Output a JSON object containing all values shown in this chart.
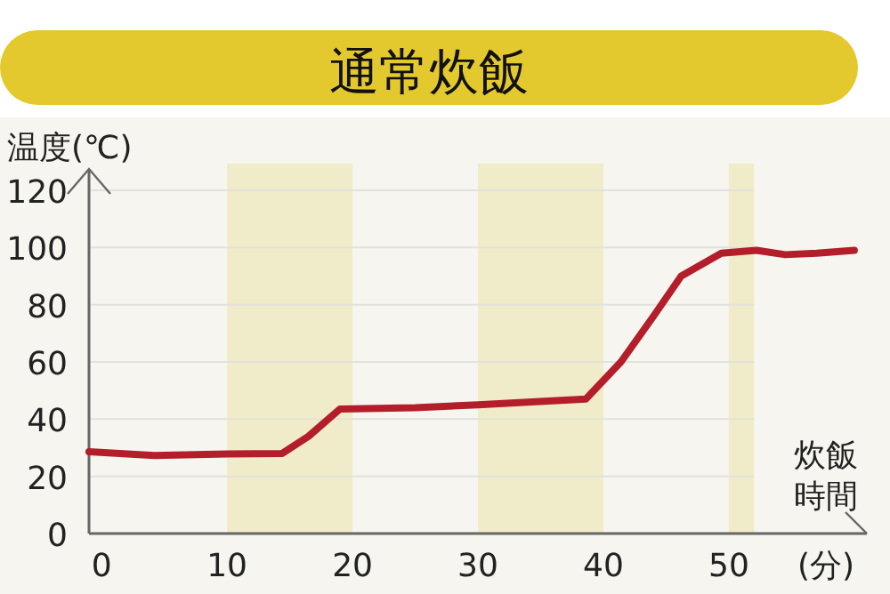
{
  "chart_data": {
    "type": "line",
    "title": "通常炊飯",
    "ylabel": "温度(℃)",
    "xlabel": "炊飯時間(分)",
    "x": [
      -1,
      4.2,
      10,
      14.4,
      16.5,
      19,
      25,
      30,
      38.6,
      41.4,
      44,
      46.2,
      49.4,
      52.2,
      54.5,
      57,
      60
    ],
    "series": [
      {
        "color": "#b31e2a",
        "values": [
          28.6,
          27.3,
          27.8,
          28,
          34,
          43.5,
          44,
          45,
          47,
          60,
          76,
          90,
          98,
          99,
          97.5,
          98,
          99
        ]
      }
    ],
    "xlim": [
      -1,
      61
    ],
    "ylim": [
      0,
      120
    ],
    "xticks": [
      0,
      10,
      20,
      30,
      40,
      50
    ],
    "yticks": [
      0,
      20,
      40,
      60,
      80,
      100,
      120
    ],
    "bands": [
      {
        "axis": "x",
        "from": 10,
        "to": 20,
        "color": "#f0ebc8"
      },
      {
        "axis": "x",
        "from": 30,
        "to": 40,
        "color": "#f0ebc8"
      },
      {
        "axis": "x",
        "from": 50,
        "to": 52,
        "color": "#f0ebc8"
      }
    ],
    "grid": "y",
    "marker": "none",
    "line_style": "solid"
  }
}
